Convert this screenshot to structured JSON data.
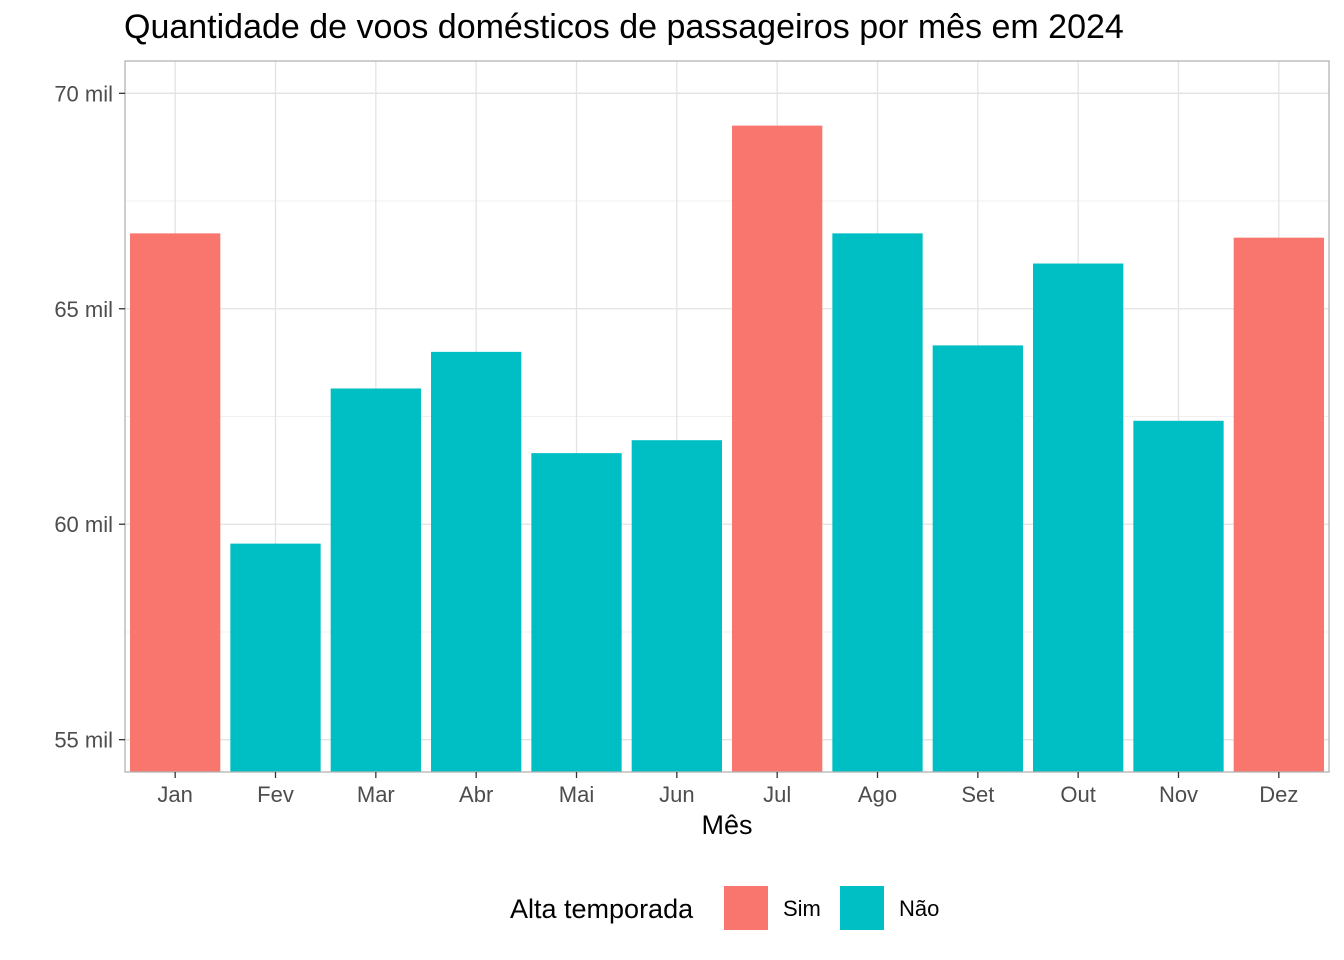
{
  "chart_data": {
    "type": "bar",
    "title": "Quantidade de voos domésticos de passageiros por mês em 2024",
    "xlabel": "Mês",
    "ylabel": "",
    "categories": [
      "Jan",
      "Fev",
      "Mar",
      "Abr",
      "Mai",
      "Jun",
      "Jul",
      "Ago",
      "Set",
      "Out",
      "Nov",
      "Dez"
    ],
    "values": [
      66750,
      59550,
      63150,
      64000,
      61650,
      61950,
      69250,
      66750,
      64150,
      66050,
      62400,
      66650
    ],
    "groups": [
      "Sim",
      "Não",
      "Não",
      "Não",
      "Não",
      "Não",
      "Sim",
      "Não",
      "Não",
      "Não",
      "Não",
      "Sim"
    ],
    "yticks": [
      55000,
      60000,
      65000,
      70000
    ],
    "ytick_labels": [
      "55 mil",
      "60 mil",
      "65 mil",
      "70 mil"
    ],
    "ylim": [
      54250,
      70750
    ],
    "grid": true,
    "legend": {
      "title": "Alta temporada",
      "placement": "bottom",
      "entries": [
        {
          "label": "Sim",
          "color": "#F8766D"
        },
        {
          "label": "Não",
          "color": "#00BFC4"
        }
      ]
    },
    "colors": {
      "Sim": "#F8766D",
      "Não": "#00BFC4"
    }
  }
}
